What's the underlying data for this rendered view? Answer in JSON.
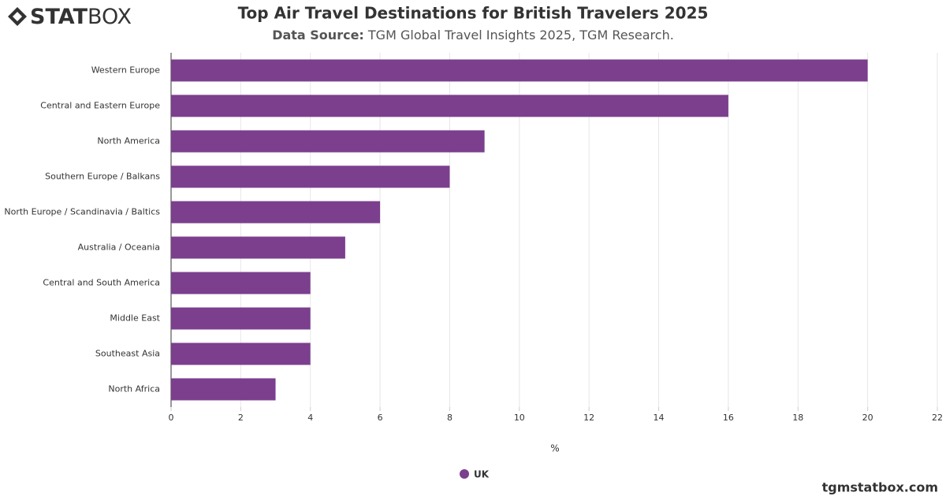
{
  "logo": {
    "bold": "STAT",
    "light": "BOX"
  },
  "footer": "tgmstatbox.com",
  "chart_data": {
    "type": "bar",
    "orientation": "horizontal",
    "title": "Top Air Travel Destinations for British Travelers 2025",
    "subtitle_label": "Data Source:",
    "subtitle": "TGM Global Travel Insights 2025, TGM Research.",
    "x_label": "%",
    "categories": [
      "Western Europe",
      "Central and Eastern Europe",
      "North America",
      "Southern Europe / Balkans",
      "North Europe / Scandinavia / Baltics",
      "Australia / Oceania",
      "Central and South America",
      "Middle East",
      "Southeast Asia",
      "North Africa"
    ],
    "series": [
      {
        "name": "UK",
        "color": "#7b3f8e",
        "values": [
          20,
          16,
          9,
          8,
          6,
          5,
          4,
          4,
          4,
          3
        ]
      }
    ],
    "xlim": [
      0,
      22
    ],
    "xticks": [
      0,
      2,
      4,
      6,
      8,
      10,
      12,
      14,
      16,
      18,
      20,
      22
    ],
    "grid": true,
    "legend": "bottom"
  }
}
